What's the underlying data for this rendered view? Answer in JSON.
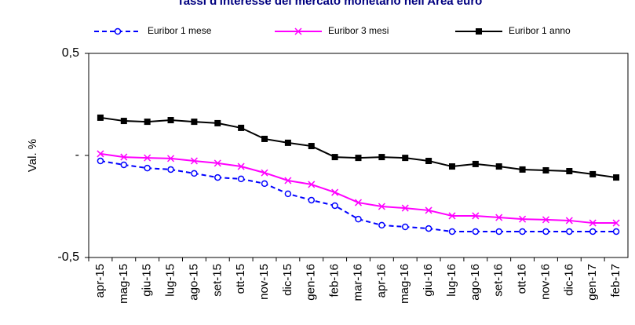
{
  "chart_data": {
    "type": "line",
    "title": "Tassi d'interesse del mercato monetario nell'Area euro",
    "y_label": "Val. %",
    "categories": [
      "apr-15",
      "mag-15",
      "giu-15",
      "lug-15",
      "ago-15",
      "set-15",
      "ott-15",
      "nov-15",
      "dic-15",
      "gen-16",
      "feb-16",
      "mar-16",
      "apr-16",
      "mag-16",
      "giu-16",
      "lug-16",
      "ago-16",
      "set-16",
      "ott-16",
      "nov-16",
      "dic-16",
      "gen-17",
      "feb-17"
    ],
    "ylim": [
      -0.5,
      0.5
    ],
    "yticks": [
      {
        "value": 0.5,
        "label": "0,5"
      },
      {
        "value": 0,
        "label": "-"
      },
      {
        "value": -0.5,
        "label": "-0,5"
      }
    ],
    "series": [
      {
        "name": "Euribor 1 mese",
        "color": "#0000ff",
        "marker": "circle",
        "dashed": true,
        "values": [
          -0.027,
          -0.046,
          -0.062,
          -0.069,
          -0.088,
          -0.108,
          -0.115,
          -0.138,
          -0.188,
          -0.219,
          -0.246,
          -0.312,
          -0.342,
          -0.35,
          -0.358,
          -0.373,
          -0.373,
          -0.373,
          -0.373,
          -0.373,
          -0.373,
          -0.373,
          -0.373
        ]
      },
      {
        "name": "Euribor 3 mesi",
        "color": "#ff00ff",
        "marker": "x",
        "dashed": false,
        "values": [
          0.008,
          -0.008,
          -0.012,
          -0.015,
          -0.027,
          -0.038,
          -0.054,
          -0.085,
          -0.123,
          -0.142,
          -0.181,
          -0.231,
          -0.25,
          -0.258,
          -0.269,
          -0.296,
          -0.296,
          -0.304,
          -0.312,
          -0.315,
          -0.319,
          -0.331,
          -0.331
        ]
      },
      {
        "name": "Euribor 1 anno",
        "color": "#000000",
        "marker": "square",
        "dashed": false,
        "values": [
          0.185,
          0.169,
          0.165,
          0.173,
          0.165,
          0.158,
          0.135,
          0.081,
          0.062,
          0.046,
          -0.008,
          -0.012,
          -0.008,
          -0.012,
          -0.027,
          -0.054,
          -0.042,
          -0.054,
          -0.069,
          -0.073,
          -0.077,
          -0.092,
          -0.108
        ]
      }
    ]
  }
}
